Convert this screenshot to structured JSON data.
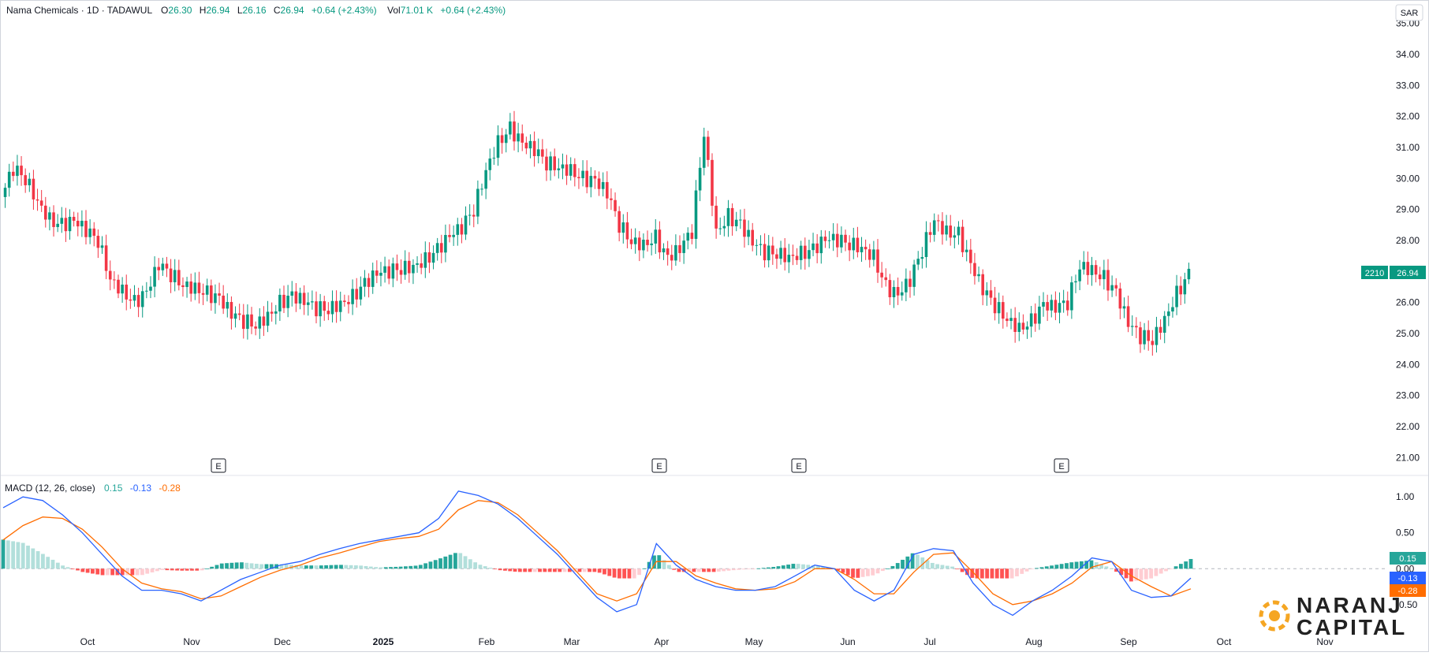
{
  "header": {
    "symbol": "Nama Chemicals · 1D · TADAWUL",
    "o_label": "O",
    "o_value": "26.30",
    "h_label": "H",
    "h_value": "26.94",
    "l_label": "L",
    "l_value": "26.16",
    "c_label": "C",
    "c_value": "26.94",
    "change": "+0.64 (+2.43%)",
    "vol_label": "Vol",
    "vol_value": "71.01 K",
    "vol_change": "+0.64 (+2.43%)"
  },
  "currency": "SAR",
  "price_label": {
    "code": "2210",
    "price": "26.94"
  },
  "earnings_marker": "E",
  "macd": {
    "title": "MACD (12, 26, close)",
    "hist_value": "0.15",
    "macd_value": "-0.13",
    "signal_value": "-0.28"
  },
  "brand": {
    "line1": "NARANJ",
    "line2": "CAPITAL"
  },
  "colors": {
    "up": "#089981",
    "down": "#f23645",
    "macd_line": "#2962ff",
    "signal_line": "#ff6d00",
    "hist_up_strong": "#26a69a",
    "hist_up_weak": "#b2dfdb",
    "hist_down_strong": "#ff5252",
    "hist_down_weak": "#ffcdd2",
    "brand": "#f5a623"
  },
  "chart_data": [
    {
      "type": "candlestick",
      "ylabel": "SAR",
      "ylim": [
        20.5,
        35.5
      ],
      "y_ticks": [
        "35.00",
        "34.00",
        "33.00",
        "32.00",
        "31.00",
        "30.00",
        "29.00",
        "28.00",
        "27.00",
        "26.00",
        "25.00",
        "24.00",
        "23.00",
        "22.00",
        "21.00"
      ],
      "x_ticks": [
        "Oct",
        "Nov",
        "Dec",
        "2025",
        "Feb",
        "Mar",
        "Apr",
        "May",
        "Jun",
        "Jul",
        "Aug",
        "Sep",
        "Oct",
        "Nov"
      ],
      "close_series_approx": [
        29.4,
        30.3,
        30.0,
        29.3,
        28.7,
        28.5,
        28.6,
        28.3,
        28.0,
        26.8,
        26.4,
        26.0,
        26.3,
        27.2,
        26.9,
        26.6,
        26.5,
        26.3,
        26.1,
        25.6,
        25.4,
        25.3,
        25.6,
        26.0,
        26.2,
        26.0,
        25.8,
        25.8,
        26.0,
        26.2,
        26.6,
        26.9,
        27.0,
        27.1,
        27.2,
        27.4,
        27.7,
        28.1,
        28.4,
        29.0,
        30.3,
        31.2,
        31.6,
        31.1,
        30.9,
        30.5,
        30.4,
        30.3,
        30.0,
        29.9,
        29.5,
        28.5,
        28.0,
        27.9,
        28.1,
        27.4,
        27.7,
        28.3,
        31.5,
        28.3,
        28.8,
        28.5,
        27.9,
        27.6,
        27.6,
        27.5,
        27.6,
        27.7,
        28.0,
        28.0,
        27.9,
        27.8,
        27.5,
        26.5,
        26.2,
        26.7,
        27.7,
        28.7,
        28.3,
        28.2,
        27.2,
        26.4,
        25.9,
        25.5,
        25.2,
        25.4,
        25.9,
        25.8,
        26.0,
        27.2,
        27.1,
        26.8,
        26.3,
        25.3,
        24.9,
        24.8,
        25.5,
        26.3,
        26.9
      ]
    },
    {
      "type": "macd",
      "name": "MACD (12, 26, close)",
      "ylim": [
        -0.7,
        1.2
      ],
      "y_ticks": [
        "1.00",
        "0.50",
        "0.00",
        "-0.50"
      ],
      "macd": [
        0.85,
        1.0,
        0.95,
        0.75,
        0.5,
        0.2,
        -0.1,
        -0.3,
        -0.3,
        -0.35,
        -0.45,
        -0.3,
        -0.15,
        -0.05,
        0.05,
        0.1,
        0.2,
        0.28,
        0.35,
        0.4,
        0.45,
        0.5,
        0.7,
        1.08,
        1.02,
        0.9,
        0.7,
        0.45,
        0.2,
        -0.1,
        -0.4,
        -0.6,
        -0.5,
        0.35,
        0.05,
        -0.15,
        -0.25,
        -0.3,
        -0.3,
        -0.25,
        -0.1,
        0.05,
        0.0,
        -0.3,
        -0.45,
        -0.3,
        0.2,
        0.28,
        0.25,
        -0.2,
        -0.5,
        -0.65,
        -0.45,
        -0.3,
        -0.1,
        0.15,
        0.1,
        -0.3,
        -0.4,
        -0.38,
        -0.13
      ],
      "signal": [
        0.4,
        0.6,
        0.72,
        0.7,
        0.55,
        0.3,
        0.0,
        -0.2,
        -0.28,
        -0.32,
        -0.42,
        -0.38,
        -0.25,
        -0.12,
        -0.02,
        0.05,
        0.15,
        0.22,
        0.3,
        0.38,
        0.42,
        0.45,
        0.55,
        0.82,
        0.95,
        0.92,
        0.75,
        0.5,
        0.25,
        -0.05,
        -0.35,
        -0.45,
        -0.35,
        0.1,
        0.1,
        -0.1,
        -0.2,
        -0.28,
        -0.3,
        -0.28,
        -0.18,
        0.0,
        0.0,
        -0.15,
        -0.35,
        -0.35,
        -0.05,
        0.2,
        0.22,
        -0.05,
        -0.35,
        -0.5,
        -0.45,
        -0.35,
        -0.2,
        0.02,
        0.1,
        -0.1,
        -0.25,
        -0.38,
        -0.28
      ],
      "histogram_last": 0.15
    }
  ]
}
